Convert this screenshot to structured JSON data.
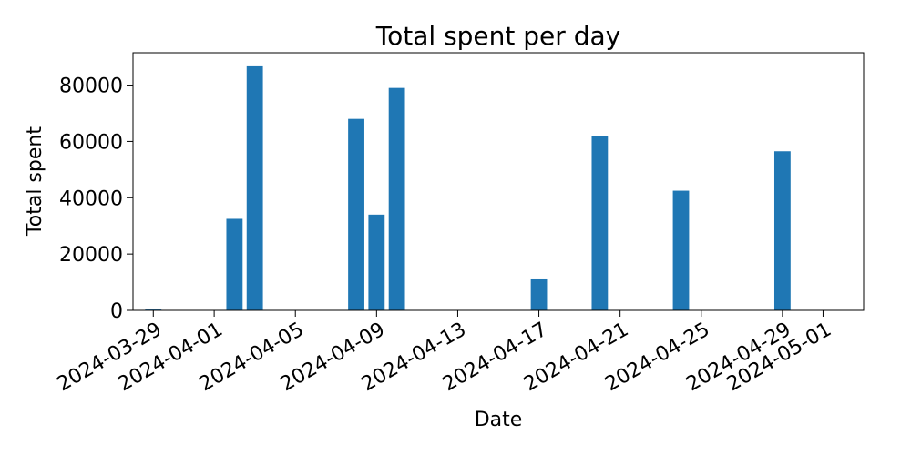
{
  "chart_data": {
    "type": "bar",
    "title": "Total spent per day",
    "xlabel": "Date",
    "ylabel": "Total spent",
    "bar_color": "#1f77b4",
    "x_ticks": [
      "2024-03-29",
      "2024-04-01",
      "2024-04-05",
      "2024-04-09",
      "2024-04-13",
      "2024-04-17",
      "2024-04-21",
      "2024-04-25",
      "2024-04-29",
      "2024-05-01"
    ],
    "x_range": [
      "2024-03-28",
      "2024-05-03"
    ],
    "y_ticks": [
      "0",
      "20000",
      "40000",
      "60000",
      "80000"
    ],
    "ylim": [
      0,
      91500
    ],
    "grid": false,
    "legend": "none",
    "dates": [
      "2024-03-29",
      "2024-04-02",
      "2024-04-03",
      "2024-04-08",
      "2024-04-09",
      "2024-04-10",
      "2024-04-17",
      "2024-04-20",
      "2024-04-24",
      "2024-04-29"
    ],
    "values": [
      300,
      32500,
      87000,
      68000,
      34000,
      79000,
      11000,
      62000,
      42500,
      56500
    ]
  }
}
